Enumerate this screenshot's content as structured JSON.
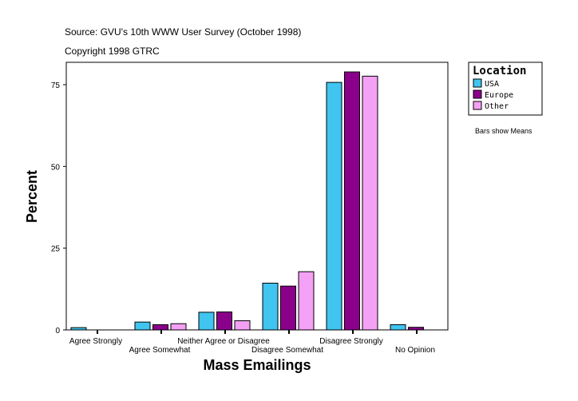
{
  "chart_data": {
    "type": "bar",
    "title": "Source: GVU's 10th WWW User Survey (October 1998)",
    "subtitle": "Copyright 1998 GTRC",
    "xlabel": "Mass Emailings",
    "ylabel": "Percent",
    "ylim": [
      0,
      82
    ],
    "yticks": [
      0,
      25,
      50,
      75
    ],
    "grid": false,
    "legend_title": "Location",
    "legend_position": "right",
    "note": "Bars show Means",
    "categories": [
      "Agree Strongly",
      "Agree Somewhat",
      "Neither Agree or Disagree",
      "Disagree Somewhat",
      "Disagree Strongly",
      "No Opinion"
    ],
    "series": [
      {
        "name": "USA",
        "color": "#40C4F0",
        "values": [
          0.7,
          2.4,
          5.4,
          14.3,
          75.7,
          1.6
        ]
      },
      {
        "name": "Europe",
        "color": "#8B008B",
        "values": [
          0,
          1.6,
          5.5,
          13.4,
          78.9,
          0.8
        ]
      },
      {
        "name": "Other",
        "color": "#F4A0F4",
        "values": [
          0,
          1.9,
          2.8,
          17.8,
          77.6,
          0
        ]
      }
    ]
  }
}
